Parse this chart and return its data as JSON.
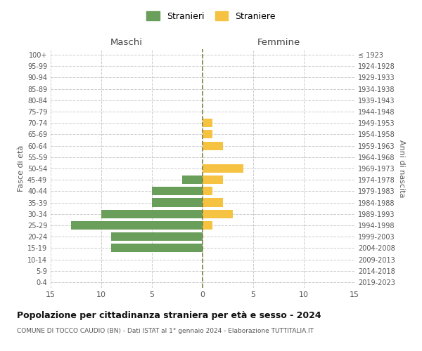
{
  "age_groups": [
    "0-4",
    "5-9",
    "10-14",
    "15-19",
    "20-24",
    "25-29",
    "30-34",
    "35-39",
    "40-44",
    "45-49",
    "50-54",
    "55-59",
    "60-64",
    "65-69",
    "70-74",
    "75-79",
    "80-84",
    "85-89",
    "90-94",
    "95-99",
    "100+"
  ],
  "birth_years": [
    "2019-2023",
    "2014-2018",
    "2009-2013",
    "2004-2008",
    "1999-2003",
    "1994-1998",
    "1989-1993",
    "1984-1988",
    "1979-1983",
    "1974-1978",
    "1969-1973",
    "1964-1968",
    "1959-1963",
    "1954-1958",
    "1949-1953",
    "1944-1948",
    "1939-1943",
    "1934-1938",
    "1929-1933",
    "1924-1928",
    "≤ 1923"
  ],
  "males": [
    0,
    0,
    0,
    9,
    9,
    13,
    10,
    5,
    5,
    2,
    0,
    0,
    0,
    0,
    0,
    0,
    0,
    0,
    0,
    0,
    0
  ],
  "females": [
    0,
    0,
    0,
    0,
    0,
    1,
    3,
    2,
    1,
    2,
    4,
    0,
    2,
    1,
    1,
    0,
    0,
    0,
    0,
    0,
    0
  ],
  "male_color": "#6a9e5b",
  "female_color": "#f5c242",
  "center_line_color": "#808040",
  "title": "Popolazione per cittadinanza straniera per età e sesso - 2024",
  "subtitle": "COMUNE DI TOCCO CAUDIO (BN) - Dati ISTAT al 1° gennaio 2024 - Elaborazione TUTTITALIA.IT",
  "xlabel_left": "Maschi",
  "xlabel_right": "Femmine",
  "ylabel_left": "Fasce di età",
  "ylabel_right": "Anni di nascita",
  "legend_male": "Stranieri",
  "legend_female": "Straniere",
  "xlim": 15,
  "background_color": "#ffffff",
  "grid_color": "#cccccc"
}
